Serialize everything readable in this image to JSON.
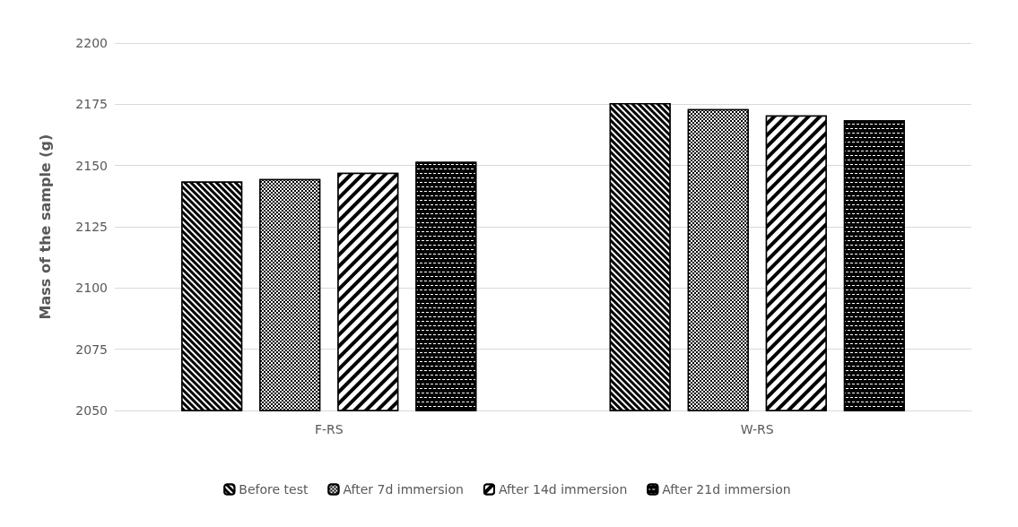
{
  "chart_data": {
    "type": "bar",
    "ylabel": "Mass of the sample (g)",
    "categories": [
      "F-RS",
      "W-RS"
    ],
    "series": [
      {
        "name": "Before test",
        "color": "#000000",
        "values": [
          2143.5,
          2175.5
        ]
      },
      {
        "name": "After 7d immersion",
        "color": "#000000",
        "values": [
          2144.5,
          2173
        ]
      },
      {
        "name": "After 14d immersion",
        "color": "#000000",
        "values": [
          2147,
          2170.5
        ]
      },
      {
        "name": "After 21d immersion",
        "color": "#000000",
        "values": [
          2151.5,
          2168.5
        ]
      }
    ],
    "ylim": [
      2050,
      2200
    ],
    "yticks": [
      2050,
      2075,
      2100,
      2125,
      2150,
      2175,
      2200
    ],
    "grid": "y",
    "legend": "bottom"
  }
}
